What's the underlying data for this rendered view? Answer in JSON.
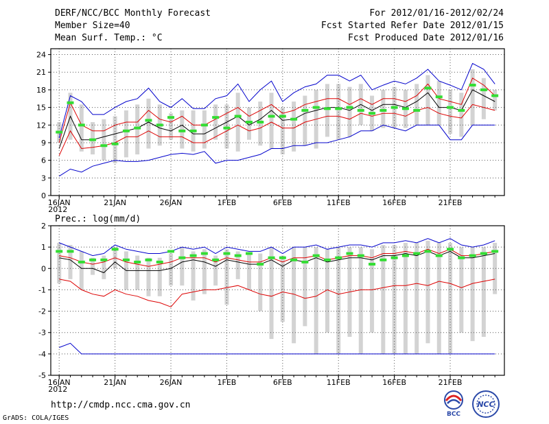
{
  "header": {
    "title": "DERF/NCC/BCC Monthly Forecast",
    "member_size": "Member Size=40",
    "variable": "Mean Surf. Temp.: °C",
    "period": "For 2012/01/16-2012/02/24",
    "started": "Fcst Started Refer Date 2012/01/15",
    "produced": "Fcst Produced Date 2012/01/16"
  },
  "footer": {
    "url": "http://cmdp.ncc.cma.gov.cn",
    "credit": "GrADS: COLA/IGES",
    "logo_bcc": "BCC",
    "logo_ncc": "NCC"
  },
  "colors": {
    "envelope": "#0000cc",
    "spread": "#dd0000",
    "mean": "#000000",
    "box": "#d3d3d3",
    "climate": "#33dd33"
  },
  "chart_data": [
    {
      "type": "line",
      "title": "Mean Surf. Temp.: °C",
      "ylim": [
        0,
        25
      ],
      "yticks": [
        0,
        3,
        6,
        9,
        12,
        15,
        18,
        21,
        24
      ],
      "x_tick_labels": [
        "16JAN",
        "21JAN",
        "26JAN",
        "1FEB",
        "6FEB",
        "11FEB",
        "16FEB",
        "21FEB"
      ],
      "x_tick_days": [
        0,
        5,
        10,
        15,
        20,
        25,
        30,
        35
      ],
      "x_year_label": "2012",
      "days": 40,
      "series": [
        {
          "name": "max",
          "values": [
            3.3,
            4.5,
            4.0,
            5.0,
            5.5,
            6.0,
            5.8,
            5.8,
            6.0,
            6.5,
            7.0,
            7.2,
            7.0,
            7.5,
            5.5,
            6.0,
            6.0,
            6.5,
            7.0,
            8.0,
            8.0,
            8.5,
            8.5,
            9.0,
            9.0,
            9.5,
            10.0,
            11.0,
            11.0,
            12.0,
            11.5,
            11.0,
            12.0,
            12.0,
            12.0,
            9.5,
            9.5,
            12.0,
            12.0,
            12.0
          ],
          "role": "lower-envelope"
        },
        {
          "name": "min",
          "values": [
            9.8,
            17.0,
            16.0,
            13.8,
            13.8,
            15.0,
            16.0,
            16.5,
            18.3,
            16.0,
            15.0,
            16.5,
            14.8,
            14.8,
            16.5,
            17.0,
            19.0,
            16.0,
            18.0,
            19.5,
            16.0,
            17.5,
            18.5,
            19.0,
            20.5,
            20.5,
            19.5,
            20.5,
            18.0,
            18.8,
            19.5,
            19.0,
            20.0,
            21.5,
            19.5,
            18.8,
            18.0,
            22.5,
            21.5,
            19.0
          ],
          "role": "upper-envelope"
        },
        {
          "name": "p_low",
          "values": [
            6.8,
            11.0,
            8.0,
            8.2,
            8.5,
            9.0,
            10.0,
            10.0,
            11.0,
            10.0,
            10.0,
            10.0,
            9.0,
            9.0,
            10.0,
            11.0,
            12.0,
            11.0,
            11.5,
            12.5,
            11.5,
            11.5,
            12.5,
            13.0,
            13.5,
            13.5,
            13.0,
            14.0,
            13.5,
            14.0,
            14.0,
            13.5,
            14.5,
            15.0,
            14.0,
            13.5,
            13.2,
            15.5,
            15.0,
            14.5
          ],
          "role": "spread-low"
        },
        {
          "name": "p_high",
          "values": [
            9.0,
            15.8,
            12.0,
            11.0,
            11.0,
            12.0,
            12.5,
            12.5,
            14.5,
            13.0,
            12.5,
            13.5,
            12.0,
            12.0,
            13.0,
            14.0,
            15.0,
            13.5,
            14.5,
            15.5,
            14.0,
            14.5,
            15.5,
            16.0,
            16.5,
            16.5,
            15.5,
            16.5,
            15.5,
            16.5,
            16.5,
            16.0,
            17.0,
            19.0,
            16.5,
            16.0,
            15.5,
            20.0,
            18.8,
            17.0
          ],
          "role": "spread-high"
        },
        {
          "name": "mean",
          "values": [
            8.0,
            13.5,
            9.5,
            9.5,
            10.0,
            10.5,
            11.0,
            11.5,
            12.5,
            11.5,
            11.0,
            12.0,
            10.5,
            10.5,
            11.5,
            12.5,
            13.5,
            12.0,
            13.0,
            14.5,
            12.8,
            13.0,
            14.0,
            14.5,
            15.0,
            15.0,
            14.5,
            15.5,
            14.5,
            15.5,
            15.5,
            15.0,
            16.0,
            17.5,
            15.0,
            15.0,
            14.5,
            18.0,
            17.0,
            16.0
          ],
          "role": "ensemble-mean"
        },
        {
          "name": "climate",
          "values": [
            10.8,
            15.8,
            12.0,
            9.5,
            8.5,
            8.8,
            11.0,
            11.5,
            12.8,
            12.0,
            13.3,
            11.0,
            11.0,
            12.0,
            13.3,
            11.5,
            13.5,
            12.5,
            12.5,
            13.5,
            13.5,
            13.0,
            14.5,
            15.0,
            14.8,
            14.8,
            15.0,
            14.5,
            14.0,
            14.5,
            15.0,
            14.8,
            14.5,
            18.3,
            16.8,
            15.0,
            14.5,
            18.8,
            18.0,
            17.0
          ],
          "role": "climatology"
        }
      ],
      "boxes_low": [
        9.0,
        9.5,
        7.5,
        7.0,
        6.0,
        5.5,
        6.5,
        7.0,
        8.0,
        8.5,
        9.5,
        8.0,
        7.5,
        8.0,
        9.5,
        8.0,
        7.5,
        9.5,
        8.5,
        8.0,
        7.0,
        7.5,
        8.5,
        8.0,
        10.0,
        9.5,
        10.0,
        12.0,
        11.0,
        11.5,
        11.5,
        11.5,
        12.0,
        12.0,
        12.0,
        10.5,
        10.0,
        12.0,
        13.0,
        14.5
      ],
      "boxes_high": [
        12.5,
        17.5,
        15.5,
        12.5,
        13.0,
        13.5,
        14.5,
        15.5,
        16.5,
        15.5,
        14.0,
        14.5,
        14.5,
        14.5,
        15.5,
        15.5,
        17.5,
        15.0,
        16.0,
        17.5,
        15.0,
        16.0,
        17.0,
        18.0,
        19.0,
        19.0,
        18.5,
        19.0,
        17.0,
        18.0,
        18.5,
        18.0,
        19.0,
        20.5,
        19.5,
        18.0,
        17.5,
        21.5,
        20.0,
        18.0
      ]
    },
    {
      "type": "line",
      "title": "Prec.: log(mm/d)",
      "ylim": [
        -5,
        2
      ],
      "yticks": [
        -5,
        -4,
        -3,
        -2,
        -1,
        0,
        1,
        2
      ],
      "x_tick_labels": [
        "16JAN",
        "21JAN",
        "26JAN",
        "1FEB",
        "6FEB",
        "11FEB",
        "16FEB",
        "21FEB"
      ],
      "x_tick_days": [
        0,
        5,
        10,
        15,
        20,
        25,
        30,
        35
      ],
      "x_year_label": "2012",
      "days": 40,
      "series": [
        {
          "name": "max",
          "values": [
            -3.7,
            -3.5,
            -4.0,
            -4.0,
            -4.0,
            -4.0,
            -4.0,
            -4.0,
            -4.0,
            -4.0,
            -4.0,
            -4.0,
            -4.0,
            -4.0,
            -4.0,
            -4.0,
            -4.0,
            -4.0,
            -4.0,
            -4.0,
            -4.0,
            -4.0,
            -4.0,
            -4.0,
            -4.0,
            -4.0,
            -4.0,
            -4.0,
            -4.0,
            -4.0,
            -4.0,
            -4.0,
            -4.0,
            -4.0,
            -4.0,
            -4.0,
            -4.0,
            -4.0,
            -4.0,
            -4.0
          ],
          "role": "lower-envelope"
        },
        {
          "name": "min",
          "values": [
            1.2,
            1.0,
            0.8,
            0.6,
            0.7,
            1.1,
            0.9,
            0.8,
            0.7,
            0.7,
            0.8,
            1.0,
            0.9,
            1.0,
            0.7,
            1.0,
            0.9,
            0.8,
            0.8,
            1.0,
            0.7,
            1.0,
            1.0,
            1.1,
            0.9,
            1.0,
            1.1,
            1.1,
            1.0,
            1.2,
            1.2,
            1.3,
            1.2,
            1.4,
            1.2,
            1.4,
            1.1,
            1.0,
            1.1,
            1.3
          ],
          "role": "upper-envelope"
        },
        {
          "name": "p_low",
          "values": [
            -0.5,
            -0.6,
            -1.0,
            -1.2,
            -1.3,
            -1.0,
            -1.2,
            -1.3,
            -1.5,
            -1.6,
            -1.8,
            -1.2,
            -1.1,
            -1.0,
            -1.0,
            -0.9,
            -0.8,
            -1.0,
            -1.2,
            -1.3,
            -1.1,
            -1.2,
            -1.4,
            -1.3,
            -1.0,
            -1.2,
            -1.1,
            -1.0,
            -1.0,
            -0.9,
            -0.8,
            -0.8,
            -0.7,
            -0.8,
            -0.6,
            -0.7,
            -0.9,
            -0.7,
            -0.6,
            -0.5
          ],
          "role": "spread-low"
        },
        {
          "name": "p_high",
          "values": [
            0.6,
            0.5,
            0.3,
            0.2,
            0.3,
            0.5,
            0.3,
            0.2,
            0.1,
            0.2,
            0.3,
            0.5,
            0.5,
            0.5,
            0.3,
            0.5,
            0.4,
            0.3,
            0.3,
            0.5,
            0.3,
            0.5,
            0.5,
            0.6,
            0.4,
            0.5,
            0.6,
            0.6,
            0.5,
            0.7,
            0.7,
            0.8,
            0.7,
            0.9,
            0.7,
            0.9,
            0.6,
            0.6,
            0.7,
            0.8
          ],
          "role": "spread-high"
        },
        {
          "name": "mean",
          "values": [
            0.5,
            0.4,
            0.0,
            0.0,
            -0.2,
            0.3,
            -0.1,
            -0.1,
            -0.1,
            -0.1,
            0.0,
            0.3,
            0.4,
            0.3,
            0.1,
            0.4,
            0.3,
            0.2,
            0.2,
            0.4,
            0.1,
            0.4,
            0.3,
            0.5,
            0.3,
            0.4,
            0.5,
            0.5,
            0.4,
            0.6,
            0.6,
            0.7,
            0.6,
            0.8,
            0.6,
            0.8,
            0.5,
            0.5,
            0.6,
            0.7
          ],
          "role": "ensemble-mean"
        },
        {
          "name": "climate",
          "values": [
            0.8,
            0.8,
            0.3,
            0.4,
            0.4,
            0.9,
            0.4,
            0.3,
            0.4,
            0.3,
            0.8,
            0.5,
            0.6,
            0.7,
            0.4,
            0.7,
            0.6,
            0.7,
            0.2,
            0.5,
            0.5,
            0.4,
            0.3,
            0.6,
            0.4,
            0.5,
            0.7,
            0.6,
            0.2,
            0.4,
            0.5,
            0.6,
            0.7,
            0.8,
            0.6,
            0.9,
            0.5,
            0.6,
            0.7,
            0.8
          ],
          "role": "climatology"
        }
      ],
      "boxes_low": [
        -0.7,
        -0.5,
        -1.0,
        -0.3,
        -0.5,
        0.0,
        -1.0,
        -1.0,
        -1.3,
        -1.3,
        -0.8,
        -0.8,
        -1.5,
        -1.2,
        -0.8,
        -1.7,
        -0.5,
        -1.0,
        -2.0,
        -3.3,
        -2.5,
        -3.5,
        -2.7,
        -4.0,
        -3.0,
        -4.0,
        -3.2,
        -4.0,
        -3.0,
        -4.0,
        -4.0,
        -4.0,
        -4.0,
        -3.5,
        -4.0,
        -4.0,
        -3.0,
        -3.4,
        -3.2,
        -1.2
      ],
      "boxes_high": [
        1.2,
        1.1,
        0.8,
        0.5,
        0.6,
        1.0,
        0.8,
        0.6,
        0.5,
        0.5,
        0.7,
        1.0,
        0.8,
        0.9,
        0.6,
        0.9,
        0.8,
        0.7,
        0.7,
        1.0,
        0.6,
        1.0,
        1.0,
        1.0,
        0.9,
        1.0,
        1.0,
        1.0,
        0.9,
        1.1,
        1.1,
        1.2,
        1.2,
        1.3,
        1.2,
        1.2,
        1.0,
        1.0,
        1.0,
        1.2
      ]
    }
  ]
}
